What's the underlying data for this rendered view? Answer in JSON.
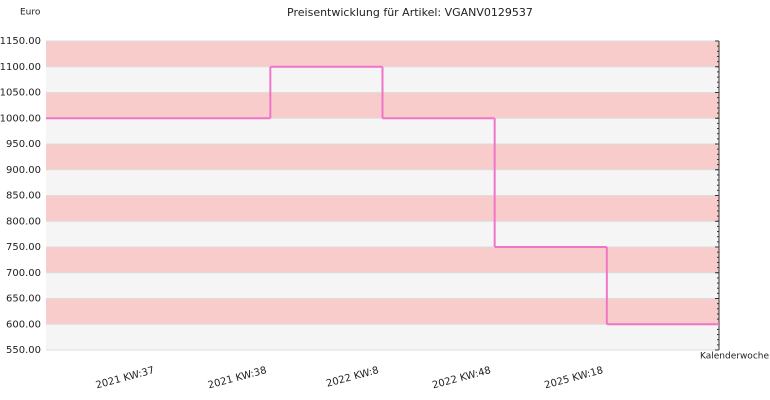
{
  "chart_data": {
    "type": "step",
    "title": "Preisentwicklung für Artikel: VGANV0129537",
    "y_label": "Euro",
    "x_label": "Kalenderwoche",
    "categories": [
      "2021 KW:37",
      "2021 KW:38",
      "2022 KW:8",
      "2022 KW:48",
      "2025 KW:18"
    ],
    "values": [
      1000,
      1100,
      1000,
      750,
      600
    ],
    "color": "#f075c8",
    "band_colors": [
      "#f9cccc",
      "#f5f5f5"
    ],
    "ylim": [
      550,
      1150
    ],
    "yticks": [
      {
        "value": 550,
        "label": "550.00"
      },
      {
        "value": 600,
        "label": "600.00"
      },
      {
        "value": 650,
        "label": "650.00"
      },
      {
        "value": 700,
        "label": "700.00"
      },
      {
        "value": 750,
        "label": "750.00"
      },
      {
        "value": 800,
        "label": "800.00"
      },
      {
        "value": 850,
        "label": "850.00"
      },
      {
        "value": 900,
        "label": "900.00"
      },
      {
        "value": 950,
        "label": "950.00"
      },
      {
        "value": 1000,
        "label": "1000.00"
      },
      {
        "value": 1050,
        "label": "1050.00"
      },
      {
        "value": 1100,
        "label": "1100.00"
      },
      {
        "value": 1150,
        "label": "1150.00"
      }
    ]
  }
}
